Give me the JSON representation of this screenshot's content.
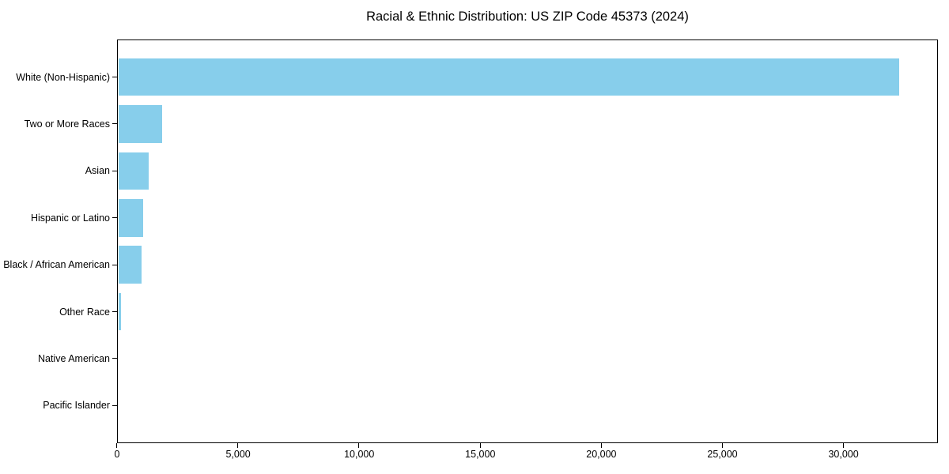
{
  "chart_data": {
    "type": "bar",
    "orientation": "horizontal",
    "title": "Racial & Ethnic Distribution: US ZIP Code 45373 (2024)",
    "categories": [
      "White (Non-Hispanic)",
      "Two or More Races",
      "Asian",
      "Hispanic or Latino",
      "Black / African American",
      "Other Race",
      "Native American",
      "Pacific Islander"
    ],
    "values": [
      32300,
      1860,
      1300,
      1070,
      1020,
      150,
      40,
      10
    ],
    "xlabel": "",
    "ylabel": "",
    "xlim": [
      0,
      33900
    ],
    "xticks": [
      0,
      5000,
      10000,
      15000,
      20000,
      25000,
      30000
    ],
    "xtick_labels": [
      "0",
      "5,000",
      "10,000",
      "15,000",
      "20,000",
      "25,000",
      "30,000"
    ],
    "bar_color": "#87CEEB",
    "axis_color": "#000000",
    "text_color": "#000000",
    "background": "#FFFFFF",
    "grid": false,
    "legend": "none"
  }
}
